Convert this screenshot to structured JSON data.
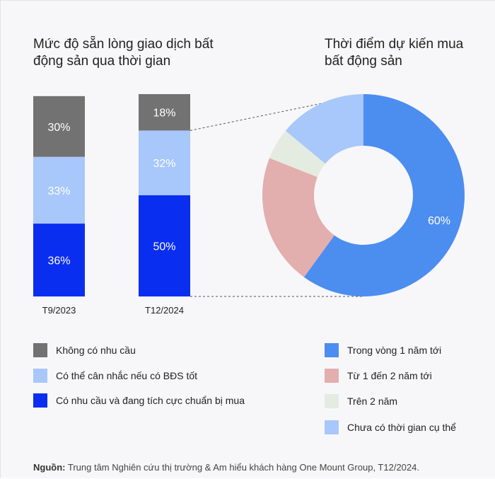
{
  "colors": {
    "gray": "#727272",
    "light_blue": "#a8c7fb",
    "blue": "#0a2ef0",
    "pie_blue": "#4c8df0",
    "pink": "#e3aeae",
    "pale_green": "#e4ebe1",
    "pie_light_blue": "#a8c7fb"
  },
  "titles": {
    "left": "Mức độ sẵn lòng giao dịch bất động sản qua thời gian",
    "right": "Thời điểm dự kiến mua bất động sản"
  },
  "chart_data": [
    {
      "type": "bar",
      "stacked": true,
      "categories": [
        "T9/2023",
        "T12/2024"
      ],
      "series": [
        {
          "name": "Có nhu cầu và đang tích cực chuẩn bị mua",
          "values": [
            36,
            50
          ],
          "labels": [
            "36%",
            "50%"
          ],
          "color": "#0a2ef0"
        },
        {
          "name": "Có thể cân nhắc nếu có BĐS tốt",
          "values": [
            33,
            32
          ],
          "labels": [
            "33%",
            "32%"
          ],
          "color": "#a8c7fb"
        },
        {
          "name": "Không có nhu cầu",
          "values": [
            30,
            18
          ],
          "labels": [
            "30%",
            "18%"
          ],
          "color": "#727272"
        }
      ],
      "title": "Mức độ sẵn lòng giao dịch bất động sản qua thời gian"
    },
    {
      "type": "pie",
      "donut": true,
      "slices": [
        {
          "name": "Trong vòng 1 năm tới",
          "value": 60,
          "label": "60%",
          "color": "#4c8df0"
        },
        {
          "name": "Từ 1 đến 2 năm tới",
          "value": 21,
          "label": "",
          "color": "#e3aeae"
        },
        {
          "name": "Trên 2 năm",
          "value": 5,
          "label": "",
          "color": "#e4ebe1"
        },
        {
          "name": "Chưa có thời gian cụ thể",
          "value": 14,
          "label": "",
          "color": "#a8c7fb"
        }
      ],
      "title": "Thời điểm dự kiến mua bất động sản"
    }
  ],
  "legend_left": [
    {
      "label": "Không có nhu cầu",
      "color": "#727272"
    },
    {
      "label": "Có thể cân nhắc nếu có BĐS tốt",
      "color": "#a8c7fb"
    },
    {
      "label": "Có nhu cầu và đang tích cực chuẩn bị mua",
      "color": "#0a2ef0"
    }
  ],
  "legend_right": [
    {
      "label": "Trong vòng 1 năm tới",
      "color": "#4c8df0"
    },
    {
      "label": "Từ 1 đến 2 năm tới",
      "color": "#e3aeae"
    },
    {
      "label": "Trên 2 năm",
      "color": "#e4ebe1"
    },
    {
      "label": "Chưa có thời gian cụ thể",
      "color": "#a8c7fb"
    }
  ],
  "source": {
    "prefix": "Nguồn:",
    "text": "Trung tâm Nghiên cứu thị trường & Am hiểu khách hàng One Mount Group, T12/2024."
  }
}
